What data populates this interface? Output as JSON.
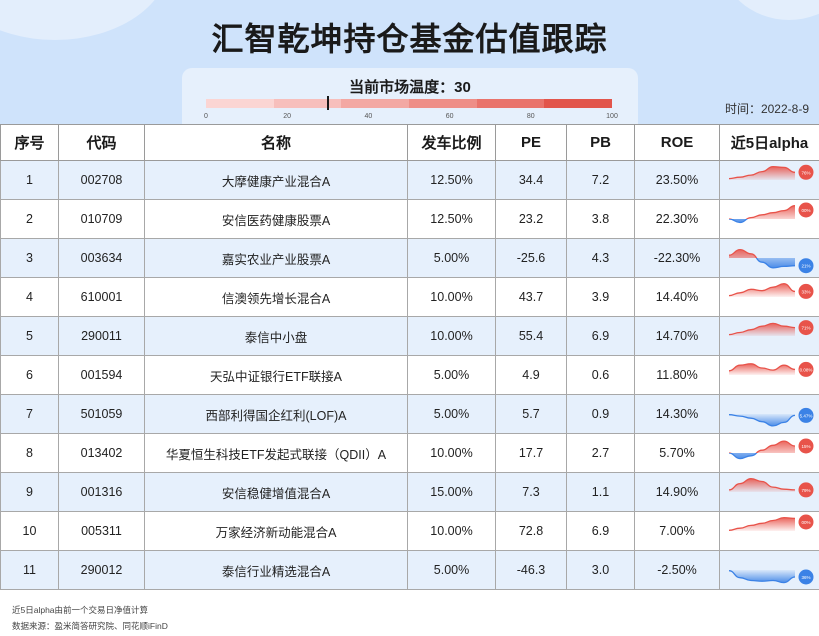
{
  "page": {
    "title": "汇智乾坤持仓基金估值跟踪",
    "temperature_label": "当前市场温度：30",
    "temperature_value": 30,
    "temperature_ticks": [
      "0",
      "20",
      "40",
      "60",
      "80",
      "100"
    ],
    "temperature_colors": [
      "#fbd5d3",
      "#f7bfbc",
      "#f3a8a3",
      "#ee8e87",
      "#e9736b",
      "#e2554b"
    ],
    "date_label": "时间：2022-8-9"
  },
  "table": {
    "headers": [
      "序号",
      "代码",
      "名称",
      "发车比例",
      "PE",
      "PB",
      "ROE",
      "近5日alpha"
    ],
    "rows": [
      {
        "idx": "1",
        "code": "002708",
        "name": "大摩健康产业混合A",
        "ratio": "12.50%",
        "pe": "34.4",
        "pb": "7.2",
        "roe": "23.50%",
        "alpha_label": "76%",
        "alpha_sign": "pos",
        "spark": [
          0.1,
          0.2,
          0.35,
          0.6,
          0.95,
          0.9,
          0.55
        ]
      },
      {
        "idx": "2",
        "code": "010709",
        "name": "安信医药健康股票A",
        "ratio": "12.50%",
        "pe": "23.2",
        "pb": "3.8",
        "roe": "22.30%",
        "alpha_label": "00%",
        "alpha_sign": "mixed",
        "spark": [
          0.0,
          -0.25,
          0.1,
          0.3,
          0.45,
          0.6,
          0.95
        ]
      },
      {
        "idx": "3",
        "code": "003634",
        "name": "嘉实农业产业股票A",
        "ratio": "5.00%",
        "pe": "-25.6",
        "pb": "4.3",
        "roe": "-22.30%",
        "alpha_label": "21%",
        "alpha_sign": "mixed",
        "spark": [
          0.2,
          0.6,
          0.3,
          -0.3,
          -0.7,
          -0.6,
          -0.55
        ]
      },
      {
        "idx": "4",
        "code": "610001",
        "name": "信澳领先增长混合A",
        "ratio": "10.00%",
        "pe": "43.7",
        "pb": "3.9",
        "roe": "14.40%",
        "alpha_label": "33%",
        "alpha_sign": "pos",
        "spark": [
          0.1,
          0.3,
          0.55,
          0.45,
          0.7,
          0.95,
          0.4
        ]
      },
      {
        "idx": "5",
        "code": "290011",
        "name": "泰信中小盘",
        "ratio": "10.00%",
        "pe": "55.4",
        "pb": "6.9",
        "roe": "14.70%",
        "alpha_label": "71%",
        "alpha_sign": "pos",
        "spark": [
          0.1,
          0.25,
          0.45,
          0.7,
          0.9,
          0.7,
          0.6
        ]
      },
      {
        "idx": "6",
        "code": "001594",
        "name": "天弘中证银行ETF联接A",
        "ratio": "5.00%",
        "pe": "4.9",
        "pb": "0.6",
        "roe": "11.80%",
        "alpha_label": "0.08%",
        "alpha_sign": "pos",
        "spark": [
          0.3,
          0.7,
          0.8,
          0.5,
          0.35,
          0.7,
          0.4
        ]
      },
      {
        "idx": "7",
        "code": "501059",
        "name": "西部利得国企红利(LOF)A",
        "ratio": "5.00%",
        "pe": "5.7",
        "pb": "0.9",
        "roe": "14.30%",
        "alpha_label": "5.47%",
        "alpha_sign": "neg",
        "spark": [
          -0.05,
          -0.15,
          -0.3,
          -0.55,
          -0.85,
          -0.6,
          -0.1
        ]
      },
      {
        "idx": "8",
        "code": "013402",
        "name": "华夏恒生科技ETF发起式联接（QDII）A",
        "ratio": "10.00%",
        "pe": "17.7",
        "pb": "2.7",
        "roe": "5.70%",
        "alpha_label": "15%",
        "alpha_sign": "mixed",
        "spark": [
          0.0,
          -0.4,
          -0.2,
          0.2,
          0.55,
          0.85,
          0.5
        ]
      },
      {
        "idx": "9",
        "code": "001316",
        "name": "安信稳健增值混合A",
        "ratio": "15.00%",
        "pe": "7.3",
        "pb": "1.1",
        "roe": "14.90%",
        "alpha_label": "79%",
        "alpha_sign": "pos",
        "spark": [
          0.15,
          0.6,
          0.95,
          0.75,
          0.35,
          0.2,
          0.15
        ]
      },
      {
        "idx": "10",
        "code": "005311",
        "name": "万家经济新动能混合A",
        "ratio": "10.00%",
        "pe": "72.8",
        "pb": "6.9",
        "roe": "7.00%",
        "alpha_label": "00%",
        "alpha_sign": "pos",
        "spark": [
          0.05,
          0.2,
          0.4,
          0.55,
          0.75,
          0.95,
          0.9
        ]
      },
      {
        "idx": "11",
        "code": "290012",
        "name": "泰信行业精选混合A",
        "ratio": "5.00%",
        "pe": "-46.3",
        "pb": "3.0",
        "roe": "-2.50%",
        "alpha_label": "36%",
        "alpha_sign": "neg",
        "spark": [
          -0.05,
          -0.55,
          -0.75,
          -0.8,
          -0.75,
          -0.9,
          -0.5
        ]
      }
    ]
  },
  "footer": {
    "note": "近5日alpha由前一个交易日净值计算",
    "source": "数据来源：盈米简答研究院、同花顺iFinD"
  },
  "colors": {
    "positive": "#e8534a",
    "negative": "#3b82e6",
    "row_alt": "#e6f0fc",
    "header_bg": "#cfe3fb"
  }
}
